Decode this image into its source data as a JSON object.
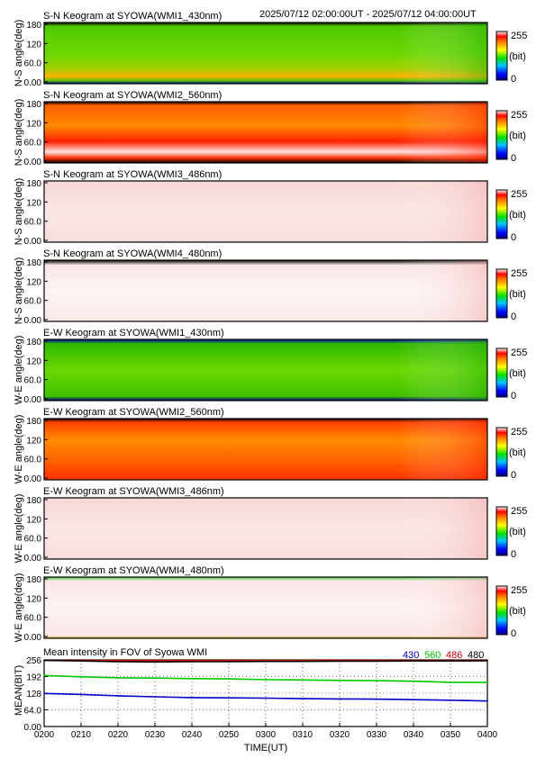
{
  "header": {
    "time_range": "2025/07/12 02:00:00UT - 2025/07/12 04:00:00UT"
  },
  "colorbar": {
    "max_label": "255",
    "unit_label": "(bit)",
    "min_label": "0"
  },
  "panels": [
    {
      "title": "S-N Keogram at SYOWA(WMI1_430nm)",
      "ylabel": "N-S angle(deg)",
      "yticks": [
        "180",
        "120",
        "60.0",
        "0.00"
      ],
      "style": "sn430"
    },
    {
      "title": "S-N Keogram at SYOWA(WMI2_560nm)",
      "ylabel": "N-S angle(deg)",
      "yticks": [
        "180",
        "120",
        "60.0",
        "0.00"
      ],
      "style": "sn560"
    },
    {
      "title": "S-N Keogram at SYOWA(WMI3_486nm)",
      "ylabel": "N-S angle(deg)",
      "yticks": [
        "180",
        "120",
        "60.0",
        "0.00"
      ],
      "style": "sn486"
    },
    {
      "title": "S-N Keogram at SYOWA(WMI4_480nm)",
      "ylabel": "N-S angle(deg)",
      "yticks": [
        "180",
        "120",
        "60.0",
        "0.00"
      ],
      "style": "sn480"
    },
    {
      "title": "E-W Keogram at SYOWA(WMI1_430nm)",
      "ylabel": "W-E angle(deg)",
      "yticks": [
        "180",
        "120",
        "60.0",
        "0.00"
      ],
      "style": "ew430"
    },
    {
      "title": "E-W Keogram at SYOWA(WMI2_560nm)",
      "ylabel": "W-E angle(deg)",
      "yticks": [
        "180",
        "120",
        "60.0",
        "0.00"
      ],
      "style": "ew560"
    },
    {
      "title": "E-W Keogram at SYOWA(WMI3_486nm)",
      "ylabel": "W-E angle(deg)",
      "yticks": [
        "180",
        "120",
        "60.0",
        "0.00"
      ],
      "style": "ew486"
    },
    {
      "title": "E-W Keogram at SYOWA(WMI4_480nm)",
      "ylabel": "W-E angle(deg)",
      "yticks": [
        "180",
        "120",
        "60.0",
        "0.00"
      ],
      "style": "ew480"
    }
  ],
  "chart_data": {
    "type": "line",
    "title": "Mean intensity in FOV of Syowa WMI",
    "xlabel": "TIME(UT)",
    "ylabel": "MEAN(BIT)",
    "x_ticks": [
      "0200",
      "0210",
      "0220",
      "0230",
      "0240",
      "0250",
      "0300",
      "0310",
      "0320",
      "0330",
      "0340",
      "0350",
      "0400"
    ],
    "y_ticks": [
      "256",
      "192",
      "128",
      "64.0",
      "0.00"
    ],
    "xlim": [
      "0200",
      "0400"
    ],
    "ylim": [
      0,
      256
    ],
    "legend_position": "top-right",
    "x": [
      "0200",
      "0210",
      "0220",
      "0230",
      "0240",
      "0250",
      "0300",
      "0310",
      "0320",
      "0330",
      "0340",
      "0350",
      "0400"
    ],
    "series": [
      {
        "name": "430",
        "color": "#0000c8",
        "values": [
          127,
          123,
          118,
          114,
          111,
          110,
          109,
          107,
          106,
          105,
          103,
          101,
          98
        ]
      },
      {
        "name": "560",
        "color": "#00c800",
        "values": [
          196,
          191,
          187,
          186,
          184,
          183,
          180,
          179,
          177,
          176,
          174,
          170,
          169
        ]
      },
      {
        "name": "486",
        "color": "#c80000",
        "values": [
          254,
          254,
          254,
          254,
          254,
          254,
          254,
          254,
          254,
          254,
          254,
          254,
          254
        ]
      },
      {
        "name": "480",
        "color": "#000000",
        "values": [
          254,
          252,
          249,
          248,
          249,
          249,
          250,
          250,
          251,
          251,
          252,
          252,
          253
        ]
      }
    ]
  }
}
